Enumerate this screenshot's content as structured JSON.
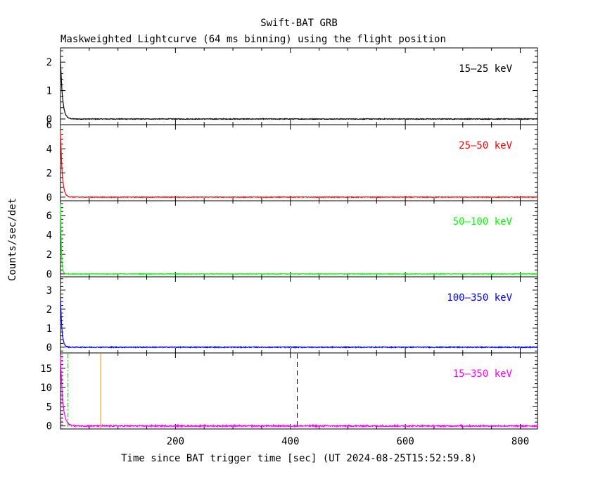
{
  "chart_data": {
    "type": "line",
    "title": "Swift-BAT GRB",
    "subtitle": "Maskweighted Lightcurve (64 ms binning) using the flight position",
    "xlabel": "Time since BAT trigger time [sec] (UT 2024-08-25T15:52:59.8)",
    "ylabel": "Counts/sec/det",
    "xlim": [
      0,
      830
    ],
    "xticks": [
      200,
      400,
      600,
      800
    ],
    "panels": [
      {
        "band": "15–25 keV",
        "color": "#000000",
        "ylim": [
          -0.2,
          2.5
        ],
        "yticks": [
          0,
          1,
          2
        ],
        "curve": {
          "peak": 2.1,
          "decay_sec": 3.5
        },
        "noise": 0.04
      },
      {
        "band": "25–50 keV",
        "color": "#ff0000",
        "ylim": [
          -0.3,
          6
        ],
        "yticks": [
          0,
          2,
          4,
          6
        ],
        "curve": {
          "peak": 5.5,
          "decay_sec": 3.0
        },
        "noise": 0.04
      },
      {
        "band": "50–100 keV",
        "color": "#00ff00",
        "ylim": [
          -0.3,
          7.5
        ],
        "yticks": [
          0,
          2,
          4,
          6
        ],
        "curve": {
          "peak": 7.2,
          "decay_sec": 1.5
        },
        "noise": 0.04
      },
      {
        "band": "100–350 keV",
        "color": "#0000ff",
        "ylim": [
          -0.3,
          3.7
        ],
        "yticks": [
          0,
          1,
          2,
          3
        ],
        "curve": {
          "peak": 2.6,
          "decay_sec": 2.5
        },
        "noise": 0.05
      },
      {
        "band": "15–350 keV",
        "color": "#ff00ff",
        "ylim": [
          -0.8,
          19
        ],
        "yticks": [
          0,
          5,
          10,
          15
        ],
        "curve": {
          "peak": 18,
          "decay_sec": 4.0
        },
        "noise": 0.08,
        "markers": [
          {
            "x": 2.5,
            "color": "#ff00ff",
            "style": "dotted"
          },
          {
            "x": 13,
            "color": "#00cc00",
            "style": "dashdot"
          },
          {
            "x": 70,
            "color": "#ff8800",
            "style": "solid"
          },
          {
            "x": 412,
            "color": "#000000",
            "style": "dashed"
          }
        ]
      }
    ]
  }
}
